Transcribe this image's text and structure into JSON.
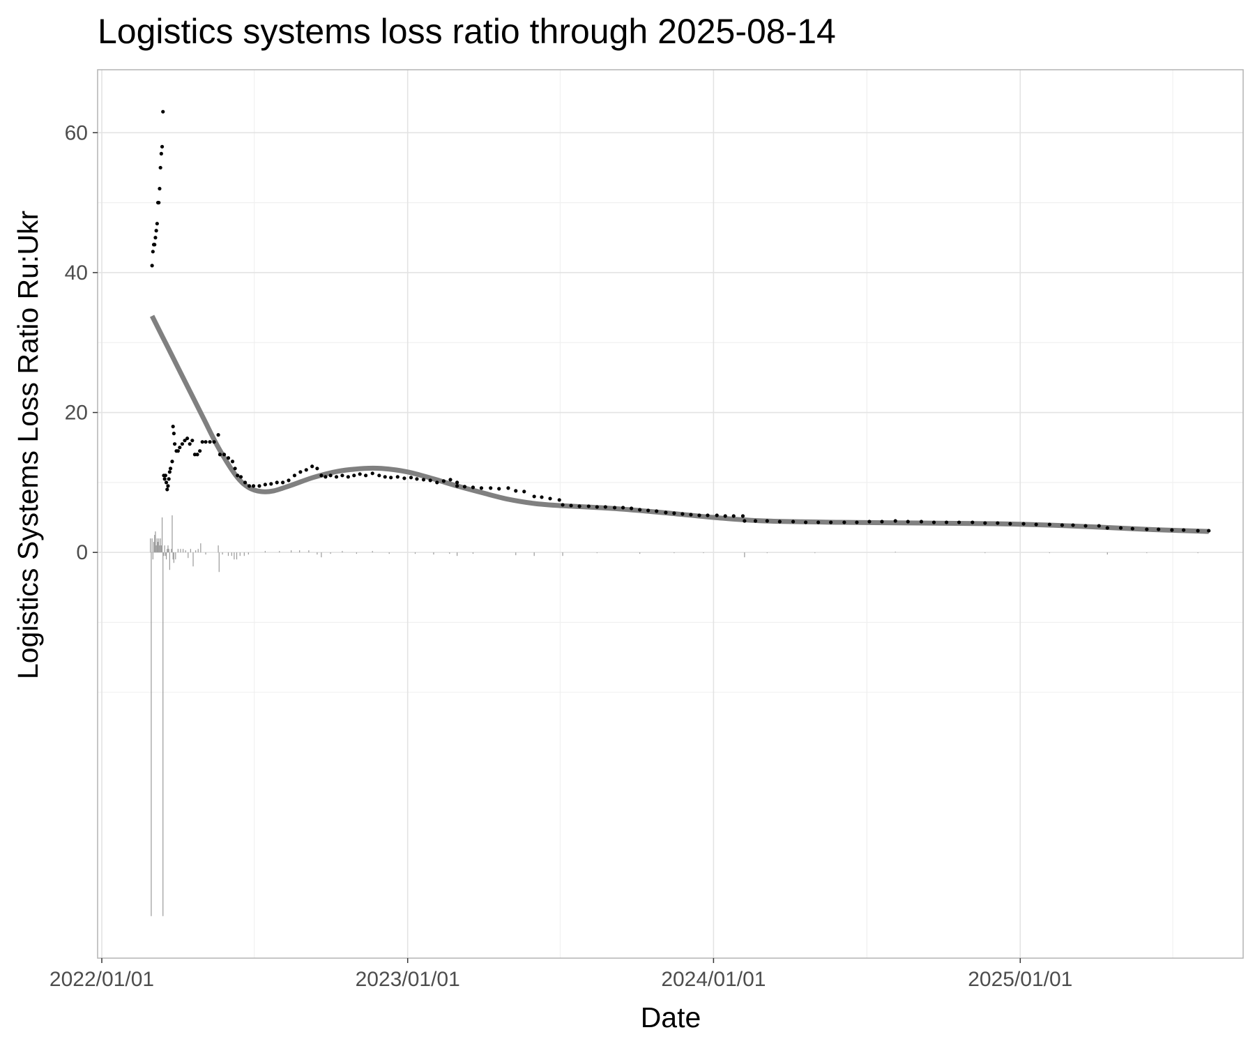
{
  "chart_data": {
    "type": "scatter",
    "title": "Logistics systems loss ratio through 2025-08-14",
    "xlabel": "Date",
    "ylabel": "Logistics Systems Loss Ratio Ru:Ukr",
    "x_range": [
      "2021-12-27",
      "2025-09-24"
    ],
    "ylim": [
      -58,
      69
    ],
    "grid": true,
    "legend": "none",
    "x_ticks": [
      {
        "date": "2022-01-01",
        "label": "2022/01/01"
      },
      {
        "date": "2023-01-01",
        "label": "2023/01/01"
      },
      {
        "date": "2024-01-01",
        "label": "2024/01/01"
      },
      {
        "date": "2025-01-01",
        "label": "2025/01/01"
      }
    ],
    "x_minor_ticks": [
      "2022-07-02",
      "2023-07-02",
      "2024-07-02",
      "2025-07-02"
    ],
    "y_ticks": [
      {
        "value": 0,
        "label": "0"
      },
      {
        "value": 20,
        "label": "20"
      },
      {
        "value": 40,
        "label": "40"
      },
      {
        "value": 60,
        "label": "60"
      }
    ],
    "y_minor_ticks": [
      -20,
      -10,
      10,
      30,
      50
    ],
    "series": [
      {
        "kind": "points",
        "color": "#000000",
        "points": [
          [
            "2022-03-02",
            41.0
          ],
          [
            "2022-03-03",
            43.0
          ],
          [
            "2022-03-04",
            44.0
          ],
          [
            "2022-03-05",
            44.0
          ],
          [
            "2022-03-06",
            45.0
          ],
          [
            "2022-03-07",
            46.0
          ],
          [
            "2022-03-08",
            47.0
          ],
          [
            "2022-03-09",
            50.0
          ],
          [
            "2022-03-10",
            50.0
          ],
          [
            "2022-03-11",
            52.0
          ],
          [
            "2022-03-12",
            55.0
          ],
          [
            "2022-03-13",
            57.0
          ],
          [
            "2022-03-14",
            58.0
          ],
          [
            "2022-03-15",
            63.0
          ],
          [
            "2022-03-16",
            11.0
          ],
          [
            "2022-03-17",
            10.5
          ],
          [
            "2022-03-18",
            11.0
          ],
          [
            "2022-03-19",
            10.0
          ],
          [
            "2022-03-20",
            9.0
          ],
          [
            "2022-03-21",
            9.5
          ],
          [
            "2022-03-22",
            10.5
          ],
          [
            "2022-03-23",
            11.5
          ],
          [
            "2022-03-24",
            12.0
          ],
          [
            "2022-03-26",
            13.0
          ],
          [
            "2022-03-27",
            18.0
          ],
          [
            "2022-03-28",
            17.0
          ],
          [
            "2022-03-29",
            15.5
          ],
          [
            "2022-03-31",
            14.5
          ],
          [
            "2022-04-02",
            14.5
          ],
          [
            "2022-04-04",
            15.0
          ],
          [
            "2022-04-07",
            15.5
          ],
          [
            "2022-04-10",
            16.0
          ],
          [
            "2022-04-13",
            16.3
          ],
          [
            "2022-04-16",
            15.5
          ],
          [
            "2022-04-19",
            16.0
          ],
          [
            "2022-04-22",
            14.0
          ],
          [
            "2022-04-25",
            14.0
          ],
          [
            "2022-04-28",
            14.5
          ],
          [
            "2022-05-01",
            15.8
          ],
          [
            "2022-05-05",
            15.8
          ],
          [
            "2022-05-10",
            15.8
          ],
          [
            "2022-05-15",
            15.8
          ],
          [
            "2022-05-20",
            16.8
          ],
          [
            "2022-05-22",
            14.0
          ],
          [
            "2022-05-27",
            14.0
          ],
          [
            "2022-06-01",
            13.5
          ],
          [
            "2022-06-06",
            13.0
          ],
          [
            "2022-06-09",
            12.0
          ],
          [
            "2022-06-12",
            11.0
          ],
          [
            "2022-06-16",
            10.8
          ],
          [
            "2022-06-21",
            10.0
          ],
          [
            "2022-06-26",
            9.5
          ],
          [
            "2022-07-01",
            9.5
          ],
          [
            "2022-07-08",
            9.5
          ],
          [
            "2022-07-15",
            9.7
          ],
          [
            "2022-07-22",
            9.8
          ],
          [
            "2022-07-29",
            10.0
          ],
          [
            "2022-08-05",
            10.0
          ],
          [
            "2022-08-12",
            10.3
          ],
          [
            "2022-08-19",
            11.0
          ],
          [
            "2022-08-26",
            11.5
          ],
          [
            "2022-09-02",
            11.8
          ],
          [
            "2022-09-09",
            12.3
          ],
          [
            "2022-09-15",
            12.0
          ],
          [
            "2022-09-20",
            11.0
          ],
          [
            "2022-09-25",
            10.8
          ],
          [
            "2022-10-01",
            11.0
          ],
          [
            "2022-10-08",
            10.8
          ],
          [
            "2022-10-15",
            11.0
          ],
          [
            "2022-10-22",
            10.8
          ],
          [
            "2022-10-29",
            11.0
          ],
          [
            "2022-11-05",
            11.2
          ],
          [
            "2022-11-12",
            11.0
          ],
          [
            "2022-11-20",
            11.3
          ],
          [
            "2022-11-28",
            11.0
          ],
          [
            "2022-12-05",
            10.8
          ],
          [
            "2022-12-12",
            10.7
          ],
          [
            "2022-12-20",
            10.8
          ],
          [
            "2022-12-28",
            10.6
          ],
          [
            "2023-01-05",
            10.7
          ],
          [
            "2023-01-12",
            10.5
          ],
          [
            "2023-01-20",
            10.4
          ],
          [
            "2023-01-28",
            10.3
          ],
          [
            "2023-02-05",
            10.0
          ],
          [
            "2023-02-13",
            10.2
          ],
          [
            "2023-02-21",
            10.4
          ],
          [
            "2023-03-01",
            10.0
          ],
          [
            "2023-03-01",
            9.5
          ],
          [
            "2023-03-10",
            9.4
          ],
          [
            "2023-03-20",
            9.3
          ],
          [
            "2023-03-30",
            9.2
          ],
          [
            "2023-04-10",
            9.2
          ],
          [
            "2023-04-20",
            9.1
          ],
          [
            "2023-05-01",
            9.2
          ],
          [
            "2023-05-10",
            8.8
          ],
          [
            "2023-05-20",
            8.7
          ],
          [
            "2023-06-01",
            8.0
          ],
          [
            "2023-06-10",
            7.9
          ],
          [
            "2023-06-20",
            7.7
          ],
          [
            "2023-07-01",
            7.5
          ],
          [
            "2023-07-05",
            6.8
          ],
          [
            "2023-07-15",
            6.7
          ],
          [
            "2023-07-25",
            6.6
          ],
          [
            "2023-08-05",
            6.6
          ],
          [
            "2023-08-15",
            6.5
          ],
          [
            "2023-08-25",
            6.5
          ],
          [
            "2023-09-05",
            6.4
          ],
          [
            "2023-09-15",
            6.4
          ],
          [
            "2023-09-25",
            6.3
          ],
          [
            "2023-10-05",
            6.1
          ],
          [
            "2023-10-15",
            6.0
          ],
          [
            "2023-10-25",
            5.9
          ],
          [
            "2023-11-05",
            5.7
          ],
          [
            "2023-11-15",
            5.6
          ],
          [
            "2023-11-25",
            5.5
          ],
          [
            "2023-12-05",
            5.4
          ],
          [
            "2023-12-15",
            5.3
          ],
          [
            "2023-12-25",
            5.3
          ],
          [
            "2024-01-05",
            5.3
          ],
          [
            "2024-01-15",
            5.2
          ],
          [
            "2024-01-25",
            5.2
          ],
          [
            "2024-02-05",
            5.2
          ],
          [
            "2024-02-07",
            4.5
          ],
          [
            "2024-02-20",
            4.5
          ],
          [
            "2024-03-05",
            4.5
          ],
          [
            "2024-03-20",
            4.4
          ],
          [
            "2024-04-05",
            4.4
          ],
          [
            "2024-04-20",
            4.3
          ],
          [
            "2024-05-05",
            4.3
          ],
          [
            "2024-05-20",
            4.3
          ],
          [
            "2024-06-05",
            4.3
          ],
          [
            "2024-06-20",
            4.3
          ],
          [
            "2024-07-05",
            4.4
          ],
          [
            "2024-07-20",
            4.4
          ],
          [
            "2024-08-05",
            4.5
          ],
          [
            "2024-08-20",
            4.4
          ],
          [
            "2024-09-05",
            4.4
          ],
          [
            "2024-09-20",
            4.3
          ],
          [
            "2024-10-05",
            4.3
          ],
          [
            "2024-10-20",
            4.3
          ],
          [
            "2024-11-05",
            4.3
          ],
          [
            "2024-11-20",
            4.2
          ],
          [
            "2024-12-05",
            4.2
          ],
          [
            "2024-12-20",
            4.1
          ],
          [
            "2025-01-05",
            4.1
          ],
          [
            "2025-01-20",
            4.0
          ],
          [
            "2025-02-05",
            4.0
          ],
          [
            "2025-02-20",
            3.9
          ],
          [
            "2025-03-05",
            3.9
          ],
          [
            "2025-03-20",
            3.8
          ],
          [
            "2025-04-05",
            3.8
          ],
          [
            "2025-04-15",
            3.5
          ],
          [
            "2025-05-01",
            3.5
          ],
          [
            "2025-05-15",
            3.4
          ],
          [
            "2025-06-01",
            3.3
          ],
          [
            "2025-06-15",
            3.3
          ],
          [
            "2025-07-01",
            3.2
          ],
          [
            "2025-07-15",
            3.2
          ],
          [
            "2025-08-01",
            3.1
          ],
          [
            "2025-08-14",
            3.1
          ]
        ]
      },
      {
        "kind": "smooth-line",
        "color": "#808080",
        "points": [
          [
            "2022-03-02",
            33.8
          ],
          [
            "2022-03-20",
            29.5
          ],
          [
            "2022-04-10",
            24.5
          ],
          [
            "2022-05-01",
            19.5
          ],
          [
            "2022-05-20",
            15.0
          ],
          [
            "2022-06-10",
            11.0
          ],
          [
            "2022-06-25",
            9.3
          ],
          [
            "2022-07-10",
            8.7
          ],
          [
            "2022-07-25",
            8.8
          ],
          [
            "2022-08-15",
            9.6
          ],
          [
            "2022-09-10",
            10.7
          ],
          [
            "2022-10-10",
            11.6
          ],
          [
            "2022-11-10",
            12.0
          ],
          [
            "2022-12-01",
            12.0
          ],
          [
            "2023-01-01",
            11.5
          ],
          [
            "2023-02-01",
            10.5
          ],
          [
            "2023-03-01",
            9.5
          ],
          [
            "2023-04-01",
            8.5
          ],
          [
            "2023-05-01",
            7.6
          ],
          [
            "2023-06-01",
            7.0
          ],
          [
            "2023-07-01",
            6.7
          ],
          [
            "2023-09-01",
            6.3
          ],
          [
            "2023-11-01",
            5.7
          ],
          [
            "2024-01-01",
            5.0
          ],
          [
            "2024-03-01",
            4.5
          ],
          [
            "2024-06-01",
            4.3
          ],
          [
            "2024-09-01",
            4.2
          ],
          [
            "2024-12-01",
            4.1
          ],
          [
            "2025-03-01",
            3.8
          ],
          [
            "2025-06-01",
            3.3
          ],
          [
            "2025-08-14",
            3.0
          ]
        ]
      },
      {
        "kind": "daily-change",
        "color": "#999999",
        "points": [
          [
            "2022-02-28",
            2.0
          ],
          [
            "2022-03-01",
            -52.0
          ],
          [
            "2022-03-02",
            2.0
          ],
          [
            "2022-03-03",
            -1.0
          ],
          [
            "2022-03-04",
            1.5
          ],
          [
            "2022-03-05",
            2.5
          ],
          [
            "2022-03-06",
            3.0
          ],
          [
            "2022-03-07",
            1.0
          ],
          [
            "2022-03-08",
            2.0
          ],
          [
            "2022-03-09",
            1.5
          ],
          [
            "2022-03-10",
            2.0
          ],
          [
            "2022-03-11",
            1.0
          ],
          [
            "2022-03-12",
            2.0
          ],
          [
            "2022-03-13",
            1.0
          ],
          [
            "2022-03-14",
            5.0
          ],
          [
            "2022-03-15",
            -52.0
          ],
          [
            "2022-03-16",
            -0.5
          ],
          [
            "2022-03-17",
            1.0
          ],
          [
            "2022-03-18",
            -0.5
          ],
          [
            "2022-03-19",
            -1.0
          ],
          [
            "2022-03-20",
            0.5
          ],
          [
            "2022-03-21",
            1.0
          ],
          [
            "2022-03-22",
            0.5
          ],
          [
            "2022-03-23",
            -2.5
          ],
          [
            "2022-03-25",
            0.5
          ],
          [
            "2022-03-26",
            5.3
          ],
          [
            "2022-03-27",
            -1.0
          ],
          [
            "2022-03-28",
            -1.5
          ],
          [
            "2022-03-30",
            -1.0
          ],
          [
            "2022-04-02",
            0.5
          ],
          [
            "2022-04-05",
            0.5
          ],
          [
            "2022-04-08",
            0.5
          ],
          [
            "2022-04-11",
            0.3
          ],
          [
            "2022-04-14",
            -0.8
          ],
          [
            "2022-04-17",
            0.5
          ],
          [
            "2022-04-20",
            -2.0
          ],
          [
            "2022-04-23",
            0.3
          ],
          [
            "2022-04-26",
            0.5
          ],
          [
            "2022-04-29",
            1.3
          ],
          [
            "2022-05-05",
            -0.3
          ],
          [
            "2022-05-20",
            1.0
          ],
          [
            "2022-05-21",
            -2.8
          ],
          [
            "2022-05-25",
            -0.3
          ],
          [
            "2022-06-01",
            -0.5
          ],
          [
            "2022-06-05",
            -0.5
          ],
          [
            "2022-06-08",
            -1.0
          ],
          [
            "2022-06-11",
            -1.0
          ],
          [
            "2022-06-15",
            -0.5
          ],
          [
            "2022-06-20",
            -0.5
          ],
          [
            "2022-06-25",
            -0.3
          ],
          [
            "2022-07-15",
            0.2
          ],
          [
            "2022-08-01",
            0.2
          ],
          [
            "2022-08-15",
            0.3
          ],
          [
            "2022-08-25",
            0.3
          ],
          [
            "2022-09-05",
            0.3
          ],
          [
            "2022-09-15",
            -0.3
          ],
          [
            "2022-09-20",
            -0.7
          ],
          [
            "2022-10-01",
            -0.2
          ],
          [
            "2022-10-15",
            0.2
          ],
          [
            "2022-11-01",
            -0.2
          ],
          [
            "2022-11-20",
            0.2
          ],
          [
            "2022-12-10",
            -0.2
          ],
          [
            "2023-01-10",
            -0.2
          ],
          [
            "2023-02-01",
            -0.3
          ],
          [
            "2023-02-20",
            -0.2
          ],
          [
            "2023-03-01",
            -0.5
          ],
          [
            "2023-03-20",
            -0.2
          ],
          [
            "2023-05-10",
            -0.4
          ],
          [
            "2023-06-01",
            -0.5
          ],
          [
            "2023-07-05",
            -0.5
          ],
          [
            "2023-08-15",
            -0.1
          ],
          [
            "2023-10-05",
            -0.2
          ],
          [
            "2023-11-15",
            -0.1
          ],
          [
            "2023-12-20",
            -0.1
          ],
          [
            "2024-02-07",
            -0.7
          ],
          [
            "2024-03-05",
            -0.1
          ],
          [
            "2024-05-01",
            -0.1
          ],
          [
            "2024-08-05",
            0.1
          ],
          [
            "2024-11-20",
            -0.1
          ],
          [
            "2025-02-05",
            -0.1
          ],
          [
            "2025-04-15",
            -0.3
          ],
          [
            "2025-06-01",
            -0.1
          ],
          [
            "2025-08-01",
            -0.1
          ]
        ]
      }
    ]
  }
}
